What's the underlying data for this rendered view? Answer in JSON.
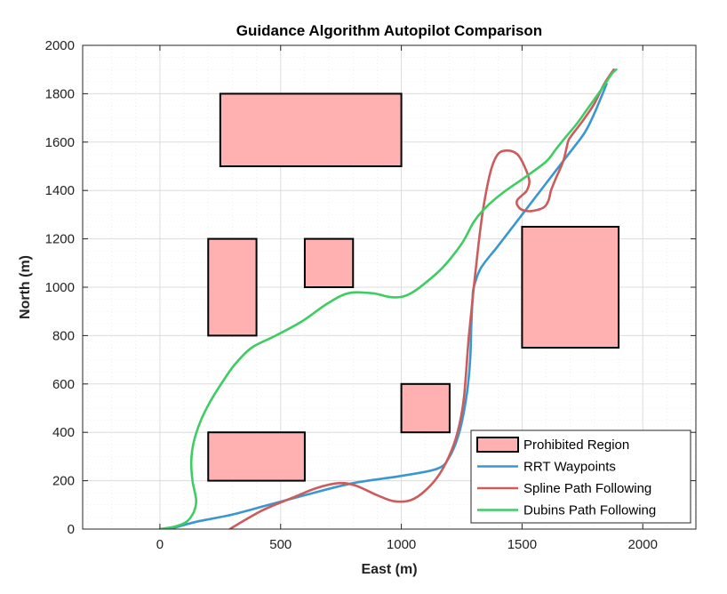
{
  "chart_data": {
    "type": "line",
    "title": "Guidance Algorithm Autopilot Comparison",
    "xlabel": "East (m)",
    "ylabel": "North (m)",
    "xlim": [
      -320,
      2220
    ],
    "ylim": [
      0,
      2000
    ],
    "xticks": [
      0,
      500,
      1000,
      1500,
      2000
    ],
    "yticks": [
      0,
      200,
      400,
      600,
      800,
      1000,
      1200,
      1400,
      1600,
      1800,
      2000
    ],
    "grid": true,
    "legend_position": "bottom-right",
    "regions": {
      "name": "Prohibited Region",
      "fill": "#ffb0b0",
      "edge": "#000000",
      "rects": [
        {
          "x": [
            250,
            1000
          ],
          "y": [
            1500,
            1800
          ]
        },
        {
          "x": [
            200,
            400
          ],
          "y": [
            800,
            1200
          ]
        },
        {
          "x": [
            600,
            800
          ],
          "y": [
            1000,
            1200
          ]
        },
        {
          "x": [
            1500,
            1900
          ],
          "y": [
            750,
            1250
          ]
        },
        {
          "x": [
            1000,
            1200
          ],
          "y": [
            400,
            600
          ]
        },
        {
          "x": [
            200,
            600
          ],
          "y": [
            200,
            400
          ]
        }
      ]
    },
    "series": [
      {
        "name": "RRT Waypoints",
        "color": "#3a97cf",
        "x": [
          40,
          150,
          300,
          450,
          600,
          800,
          1000,
          1150,
          1200,
          1240,
          1270,
          1285,
          1290,
          1295,
          1300,
          1330,
          1400,
          1500,
          1600,
          1700,
          1760,
          1800,
          1850
        ],
        "y": [
          0,
          30,
          60,
          100,
          140,
          190,
          220,
          250,
          300,
          400,
          550,
          700,
          850,
          950,
          1000,
          1080,
          1170,
          1300,
          1430,
          1560,
          1640,
          1720,
          1840
        ]
      },
      {
        "name": "Spline Path Following",
        "color": "#cc5c5c",
        "x": [
          290,
          340,
          430,
          550,
          650,
          740,
          810,
          900,
          970,
          1040,
          1100,
          1160,
          1210,
          1240,
          1260,
          1280,
          1300,
          1320,
          1340,
          1370,
          1400,
          1440,
          1480,
          1510,
          1530,
          1520,
          1500,
          1480,
          1480,
          1500,
          1540,
          1590,
          1610,
          1620,
          1640,
          1670,
          1690,
          1700,
          1730,
          1760,
          1800,
          1840,
          1880
        ],
        "y": [
          0,
          30,
          80,
          130,
          170,
          190,
          180,
          140,
          115,
          120,
          160,
          230,
          330,
          430,
          550,
          800,
          1000,
          1180,
          1330,
          1480,
          1550,
          1565,
          1550,
          1500,
          1440,
          1400,
          1380,
          1360,
          1340,
          1320,
          1315,
          1330,
          1360,
          1400,
          1450,
          1520,
          1600,
          1620,
          1660,
          1700,
          1760,
          1840,
          1900
        ]
      },
      {
        "name": "Dubins Path Following",
        "color": "#3fcc63",
        "x": [
          0,
          60,
          110,
          140,
          150,
          135,
          130,
          140,
          170,
          210,
          260,
          310,
          380,
          480,
          590,
          690,
          780,
          880,
          950,
          1000,
          1040,
          1090,
          1170,
          1250,
          1300,
          1350,
          1420,
          1520,
          1600,
          1640,
          1680,
          1730,
          1780,
          1830,
          1870,
          1890
        ],
        "y": [
          0,
          10,
          30,
          70,
          120,
          200,
          280,
          360,
          450,
          530,
          610,
          680,
          750,
          800,
          860,
          930,
          975,
          975,
          960,
          960,
          975,
          1010,
          1080,
          1180,
          1270,
          1330,
          1390,
          1460,
          1520,
          1570,
          1620,
          1680,
          1750,
          1820,
          1880,
          1900
        ]
      }
    ]
  }
}
